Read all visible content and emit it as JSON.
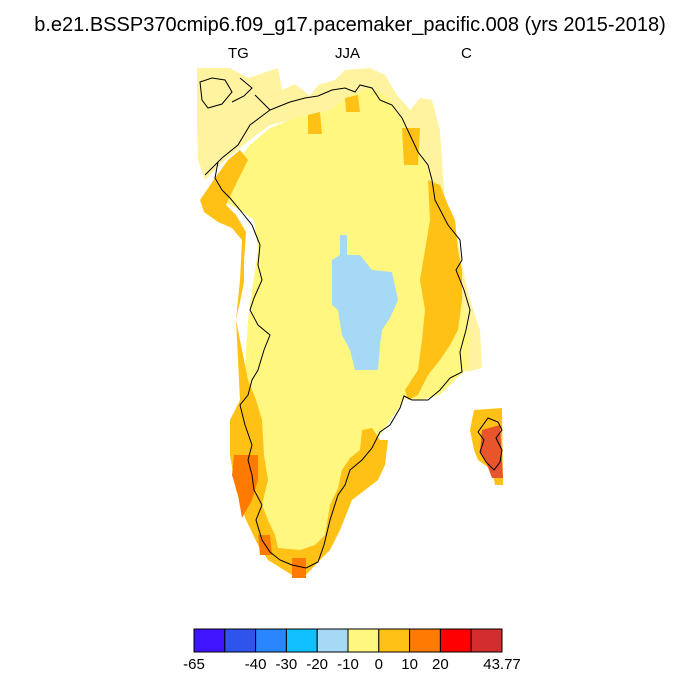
{
  "title": "b.e21.BSSP370cmip6.f09_g17.pacemaker_pacific.008 (yrs 2015-2018)",
  "subtitle_left": "TG",
  "subtitle_center": "JJA",
  "subtitle_right": "C",
  "colorbar": {
    "colors": [
      "#3f14ff",
      "#2f54ee",
      "#2986ff",
      "#11c1ff",
      "#a6d9f5",
      "#fff780",
      "#ffc115",
      "#ff7a00",
      "#ff0000",
      "#d42d2d"
    ],
    "labels": [
      "-65",
      "-40",
      "-30",
      "-20",
      "-10",
      "0",
      "10",
      "20",
      "43.77"
    ],
    "label_boundary_index": [
      0,
      2,
      3,
      4,
      5,
      6,
      7,
      8,
      10
    ]
  },
  "map": {
    "region": "Greenland",
    "field_colors": {
      "background_land": "#fff780",
      "coastal_warm": "#ffc115",
      "hot": "#ff7a00",
      "hottest": "#e9552a",
      "cold_interior": "#a6d9f5",
      "edge_pale": "#fff3a0"
    }
  }
}
